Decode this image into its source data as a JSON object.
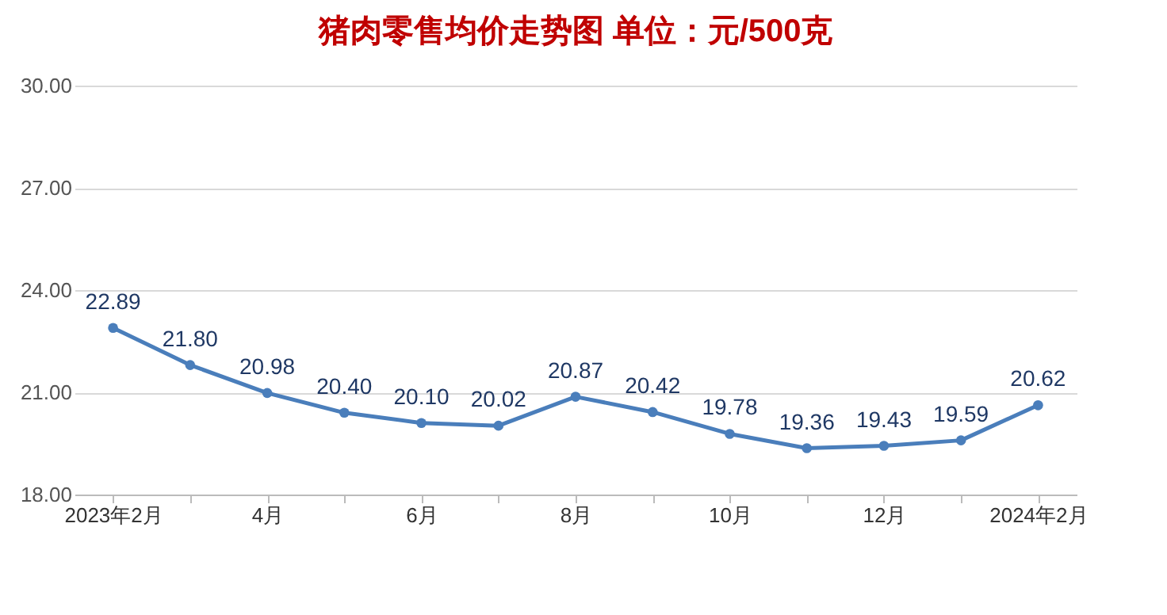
{
  "chart_data": {
    "type": "line",
    "title": "猪肉零售均价走势图    单位：元/500克",
    "categories": [
      "2023年2月",
      null,
      "4月",
      null,
      "6月",
      null,
      "8月",
      null,
      "10月",
      null,
      "12月",
      null,
      "2024年2月"
    ],
    "series": [
      {
        "color": "#4a7ebb",
        "values": [
          22.89,
          21.8,
          20.98,
          20.4,
          20.1,
          20.02,
          20.87,
          20.42,
          19.78,
          19.36,
          19.43,
          19.59,
          20.62
        ],
        "value_labels": [
          "22.89",
          "21.80",
          "20.98",
          "20.40",
          "20.10",
          "20.02",
          "20.87",
          "20.42",
          "19.78",
          "19.36",
          "19.43",
          "19.59",
          "20.62"
        ]
      }
    ],
    "ylim": [
      18,
      30
    ],
    "yticks": [
      {
        "value": 18,
        "label": "18.00"
      },
      {
        "value": 21,
        "label": "21.00"
      },
      {
        "value": 24,
        "label": "24.00"
      },
      {
        "value": 27,
        "label": "27.00"
      },
      {
        "value": 30,
        "label": "30.00"
      }
    ],
    "grid": "y",
    "marker": "circle",
    "line_style": "solid"
  }
}
